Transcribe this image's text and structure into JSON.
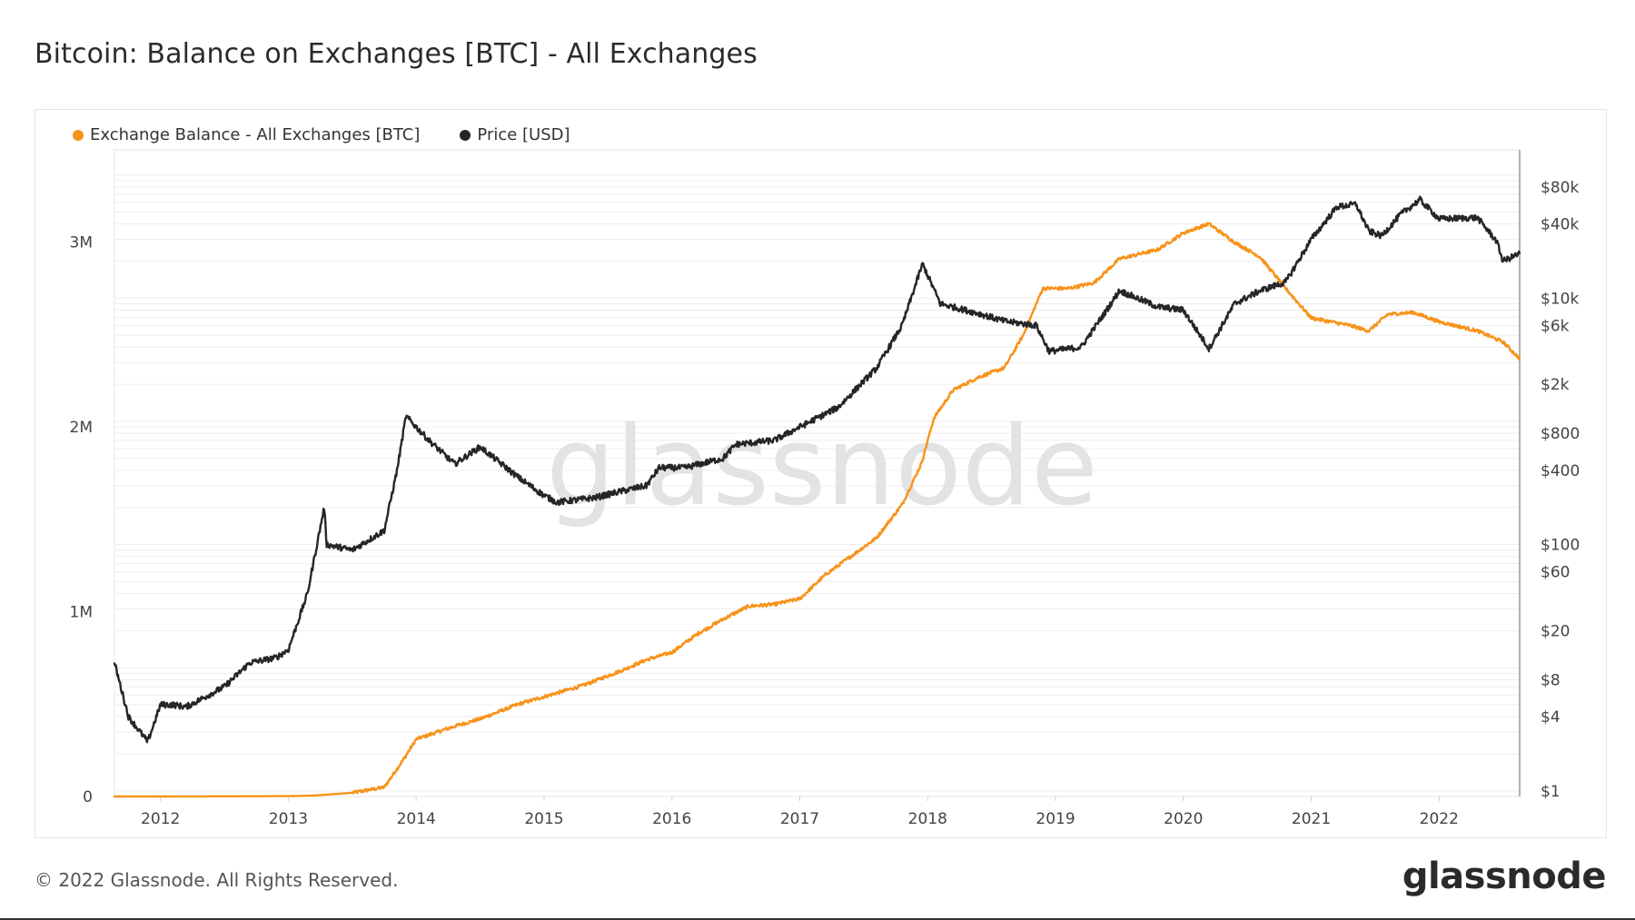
{
  "title": "Bitcoin: Balance on Exchanges [BTC] - All Exchanges",
  "footer": "© 2022 Glassnode. All Rights Reserved.",
  "logo": "glassnode",
  "watermark": "glassnode",
  "colors": {
    "balance": "#f7931a",
    "price": "#262626",
    "grid": "#ededed",
    "axis_text": "#444444",
    "watermark": "#e3e3e3"
  },
  "chart_data": {
    "type": "line",
    "legend_position": "top-left",
    "grid": true,
    "x_ticks": [
      "2012",
      "2013",
      "2014",
      "2015",
      "2016",
      "2017",
      "2018",
      "2019",
      "2020",
      "2021",
      "2022"
    ],
    "x_range": [
      2011.64,
      2022.63
    ],
    "y_left": {
      "ticks": [
        "0",
        "1M",
        "2M",
        "3M"
      ],
      "tick_values": [
        0,
        1000000,
        2000000,
        3000000
      ],
      "range": [
        0,
        3500000
      ]
    },
    "y_right": {
      "scale": "log",
      "ticks": [
        "$1",
        "$4",
        "$8",
        "$20",
        "$60",
        "$100",
        "$400",
        "$800",
        "$2k",
        "$6k",
        "$10k",
        "$40k",
        "$80k"
      ],
      "tick_values": [
        1,
        4,
        8,
        20,
        60,
        100,
        400,
        800,
        2000,
        6000,
        10000,
        40000,
        80000
      ],
      "range": [
        0.9,
        160000
      ]
    },
    "series": [
      {
        "name": "Exchange Balance - All Exchanges [BTC]",
        "axis": "left",
        "color": "#f7931a",
        "points": [
          [
            2011.64,
            0
          ],
          [
            2012.0,
            0
          ],
          [
            2012.5,
            1000
          ],
          [
            2013.0,
            2000
          ],
          [
            2013.2,
            5000
          ],
          [
            2013.5,
            20000
          ],
          [
            2013.75,
            50000
          ],
          [
            2013.9,
            200000
          ],
          [
            2014.0,
            310000
          ],
          [
            2014.3,
            380000
          ],
          [
            2014.5,
            420000
          ],
          [
            2014.8,
            500000
          ],
          [
            2015.0,
            540000
          ],
          [
            2015.3,
            600000
          ],
          [
            2015.6,
            680000
          ],
          [
            2015.8,
            740000
          ],
          [
            2016.0,
            780000
          ],
          [
            2016.2,
            880000
          ],
          [
            2016.4,
            960000
          ],
          [
            2016.6,
            1030000
          ],
          [
            2016.8,
            1040000
          ],
          [
            2017.0,
            1070000
          ],
          [
            2017.2,
            1200000
          ],
          [
            2017.4,
            1300000
          ],
          [
            2017.6,
            1400000
          ],
          [
            2017.8,
            1580000
          ],
          [
            2017.95,
            1800000
          ],
          [
            2018.05,
            2050000
          ],
          [
            2018.2,
            2200000
          ],
          [
            2018.4,
            2270000
          ],
          [
            2018.6,
            2320000
          ],
          [
            2018.75,
            2500000
          ],
          [
            2018.9,
            2750000
          ],
          [
            2019.1,
            2750000
          ],
          [
            2019.3,
            2780000
          ],
          [
            2019.5,
            2910000
          ],
          [
            2019.8,
            2960000
          ],
          [
            2020.0,
            3050000
          ],
          [
            2020.2,
            3100000
          ],
          [
            2020.4,
            3000000
          ],
          [
            2020.6,
            2920000
          ],
          [
            2020.8,
            2750000
          ],
          [
            2021.0,
            2590000
          ],
          [
            2021.3,
            2550000
          ],
          [
            2021.45,
            2520000
          ],
          [
            2021.6,
            2610000
          ],
          [
            2021.8,
            2620000
          ],
          [
            2022.0,
            2570000
          ],
          [
            2022.3,
            2520000
          ],
          [
            2022.5,
            2460000
          ],
          [
            2022.63,
            2370000
          ]
        ]
      },
      {
        "name": "Price [USD]",
        "axis": "right",
        "color": "#262626",
        "points": [
          [
            2011.64,
            11
          ],
          [
            2011.75,
            4
          ],
          [
            2011.9,
            2.5
          ],
          [
            2012.0,
            5
          ],
          [
            2012.1,
            5
          ],
          [
            2012.2,
            4.8
          ],
          [
            2012.5,
            7
          ],
          [
            2012.7,
            11
          ],
          [
            2012.9,
            12
          ],
          [
            2013.0,
            14
          ],
          [
            2013.15,
            40
          ],
          [
            2013.28,
            200
          ],
          [
            2013.3,
            100
          ],
          [
            2013.5,
            90
          ],
          [
            2013.75,
            130
          ],
          [
            2013.85,
            400
          ],
          [
            2013.92,
            1100
          ],
          [
            2014.1,
            700
          ],
          [
            2014.3,
            450
          ],
          [
            2014.5,
            620
          ],
          [
            2014.8,
            350
          ],
          [
            2015.0,
            250
          ],
          [
            2015.1,
            220
          ],
          [
            2015.4,
            240
          ],
          [
            2015.6,
            270
          ],
          [
            2015.8,
            300
          ],
          [
            2015.9,
            420
          ],
          [
            2016.1,
            420
          ],
          [
            2016.4,
            500
          ],
          [
            2016.5,
            650
          ],
          [
            2016.8,
            700
          ],
          [
            2017.0,
            900
          ],
          [
            2017.3,
            1300
          ],
          [
            2017.6,
            2700
          ],
          [
            2017.8,
            6000
          ],
          [
            2017.96,
            19000
          ],
          [
            2018.1,
            9000
          ],
          [
            2018.4,
            7500
          ],
          [
            2018.6,
            6500
          ],
          [
            2018.85,
            6000
          ],
          [
            2018.95,
            3700
          ],
          [
            2019.2,
            4000
          ],
          [
            2019.4,
            8000
          ],
          [
            2019.5,
            11500
          ],
          [
            2019.8,
            8500
          ],
          [
            2020.0,
            8000
          ],
          [
            2020.2,
            3900
          ],
          [
            2020.4,
            9000
          ],
          [
            2020.6,
            11500
          ],
          [
            2020.8,
            13500
          ],
          [
            2021.0,
            30000
          ],
          [
            2021.2,
            55000
          ],
          [
            2021.35,
            58000
          ],
          [
            2021.45,
            35000
          ],
          [
            2021.55,
            32000
          ],
          [
            2021.7,
            48000
          ],
          [
            2021.85,
            63000
          ],
          [
            2022.0,
            44000
          ],
          [
            2022.3,
            45000
          ],
          [
            2022.45,
            29000
          ],
          [
            2022.5,
            20000
          ],
          [
            2022.63,
            23000
          ]
        ]
      }
    ]
  }
}
